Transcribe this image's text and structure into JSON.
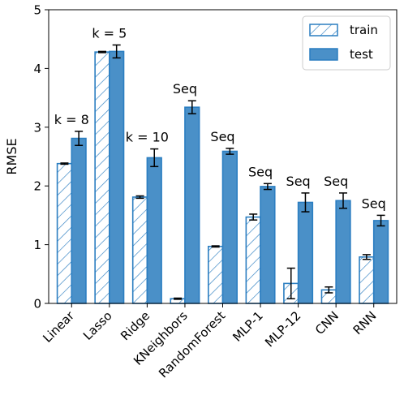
{
  "chart_data": {
    "type": "bar",
    "title": "",
    "xlabel": "",
    "ylabel": "RMSE",
    "ylim": [
      0,
      5
    ],
    "yticks": [
      "0",
      "1",
      "2",
      "3",
      "4",
      "5"
    ],
    "categories": [
      "Linear",
      "Lasso",
      "Ridge",
      "KNeighbors",
      "RandomForest",
      "MLP-1",
      "MLP-12",
      "CNN",
      "RNN"
    ],
    "series": [
      {
        "name": "train",
        "style": "hatched",
        "values": [
          2.38,
          4.28,
          1.81,
          0.08,
          0.97,
          1.47,
          0.34,
          0.23,
          0.79
        ],
        "errors": [
          0.01,
          0.01,
          0.02,
          0.01,
          0.01,
          0.05,
          0.26,
          0.05,
          0.04
        ]
      },
      {
        "name": "test",
        "style": "solid",
        "values": [
          2.81,
          4.29,
          2.48,
          3.34,
          2.59,
          1.99,
          1.72,
          1.75,
          1.41
        ],
        "errors": [
          0.12,
          0.11,
          0.15,
          0.11,
          0.05,
          0.05,
          0.16,
          0.13,
          0.09
        ]
      }
    ],
    "annotations": [
      {
        "category": "Linear",
        "text": "k = 8"
      },
      {
        "category": "Lasso",
        "text": "k = 5"
      },
      {
        "category": "Ridge",
        "text": "k = 10"
      },
      {
        "category": "KNeighbors",
        "text": "Seq"
      },
      {
        "category": "RandomForest",
        "text": "Seq"
      },
      {
        "category": "MLP-1",
        "text": "Seq"
      },
      {
        "category": "MLP-12",
        "text": "Seq"
      },
      {
        "category": "CNN",
        "text": "Seq"
      },
      {
        "category": "RNN",
        "text": "Seq"
      }
    ],
    "legend": {
      "position": "top-right",
      "entries": [
        "train",
        "test"
      ]
    },
    "grid": false,
    "colors": {
      "bar": "#4a90c8",
      "edge": "#2b7ec1",
      "hatch": "#2b7ec1",
      "error": "#000000"
    }
  }
}
